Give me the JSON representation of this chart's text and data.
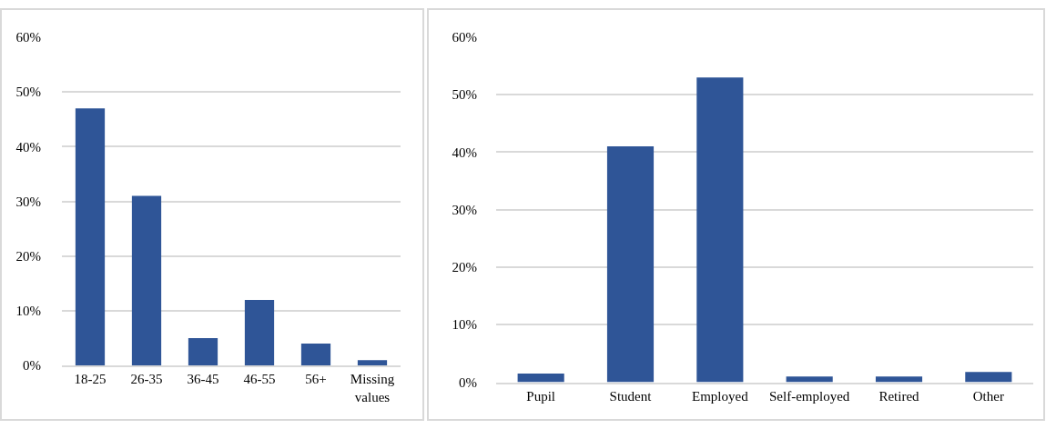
{
  "chart_data": [
    {
      "type": "bar",
      "categories": [
        "18-25",
        "26-35",
        "36-45",
        "46-55",
        "56+",
        "Missing values"
      ],
      "values": [
        47,
        31,
        5,
        12,
        4,
        1
      ],
      "color": "#2f5597",
      "ylim": [
        0,
        60
      ],
      "yticks": [
        {
          "value": 0,
          "label": "0%"
        },
        {
          "value": 10,
          "label": "10%"
        },
        {
          "value": 20,
          "label": "20%"
        },
        {
          "value": 30,
          "label": "30%"
        },
        {
          "value": 40,
          "label": "40%"
        },
        {
          "value": 50,
          "label": "50%"
        },
        {
          "value": 60,
          "label": "60%"
        }
      ],
      "grid": "y"
    },
    {
      "type": "bar",
      "categories": [
        "Pupil",
        "Student",
        "Employed",
        "Self-employed",
        "Retired",
        "Other"
      ],
      "values": [
        1.5,
        41,
        53,
        1,
        1,
        1.8
      ],
      "color": "#2f5597",
      "ylim": [
        0,
        60
      ],
      "yticks": [
        {
          "value": 0,
          "label": "0%"
        },
        {
          "value": 10,
          "label": "10%"
        },
        {
          "value": 20,
          "label": "20%"
        },
        {
          "value": 30,
          "label": "30%"
        },
        {
          "value": 40,
          "label": "40%"
        },
        {
          "value": 50,
          "label": "50%"
        },
        {
          "value": 60,
          "label": "60%"
        }
      ],
      "grid": "y"
    }
  ]
}
